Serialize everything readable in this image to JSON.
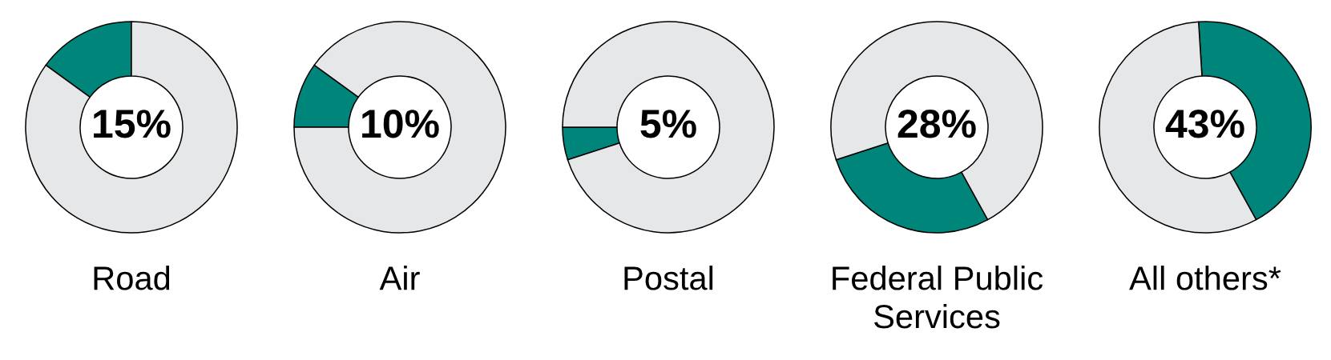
{
  "chart_data": [
    {
      "type": "donut",
      "title": "Road",
      "categories": [
        null,
        null
      ],
      "values": [
        15,
        85
      ],
      "colors": [
        "#00857a",
        "#e6e7e8"
      ],
      "annotations": [
        "15%"
      ]
    },
    {
      "type": "donut",
      "title": "Air",
      "categories": [
        null,
        null
      ],
      "values": [
        10,
        90
      ],
      "colors": [
        "#00857a",
        "#e6e7e8"
      ],
      "annotations": [
        "10%"
      ]
    },
    {
      "type": "donut",
      "title": "Postal",
      "categories": [
        null,
        null
      ],
      "values": [
        5,
        95
      ],
      "colors": [
        "#00857a",
        "#e6e7e8"
      ],
      "annotations": [
        "5%"
      ]
    },
    {
      "type": "donut",
      "title": "Federal Public Services",
      "categories": [
        null,
        null
      ],
      "values": [
        28,
        72
      ],
      "colors": [
        "#00857a",
        "#e6e7e8"
      ],
      "annotations": [
        "28%"
      ]
    },
    {
      "type": "donut",
      "title": "All others*",
      "categories": [
        null,
        null
      ],
      "values": [
        43,
        57
      ],
      "colors": [
        "#00857a",
        "#e6e7e8"
      ],
      "annotations": [
        "43%"
      ]
    }
  ]
}
